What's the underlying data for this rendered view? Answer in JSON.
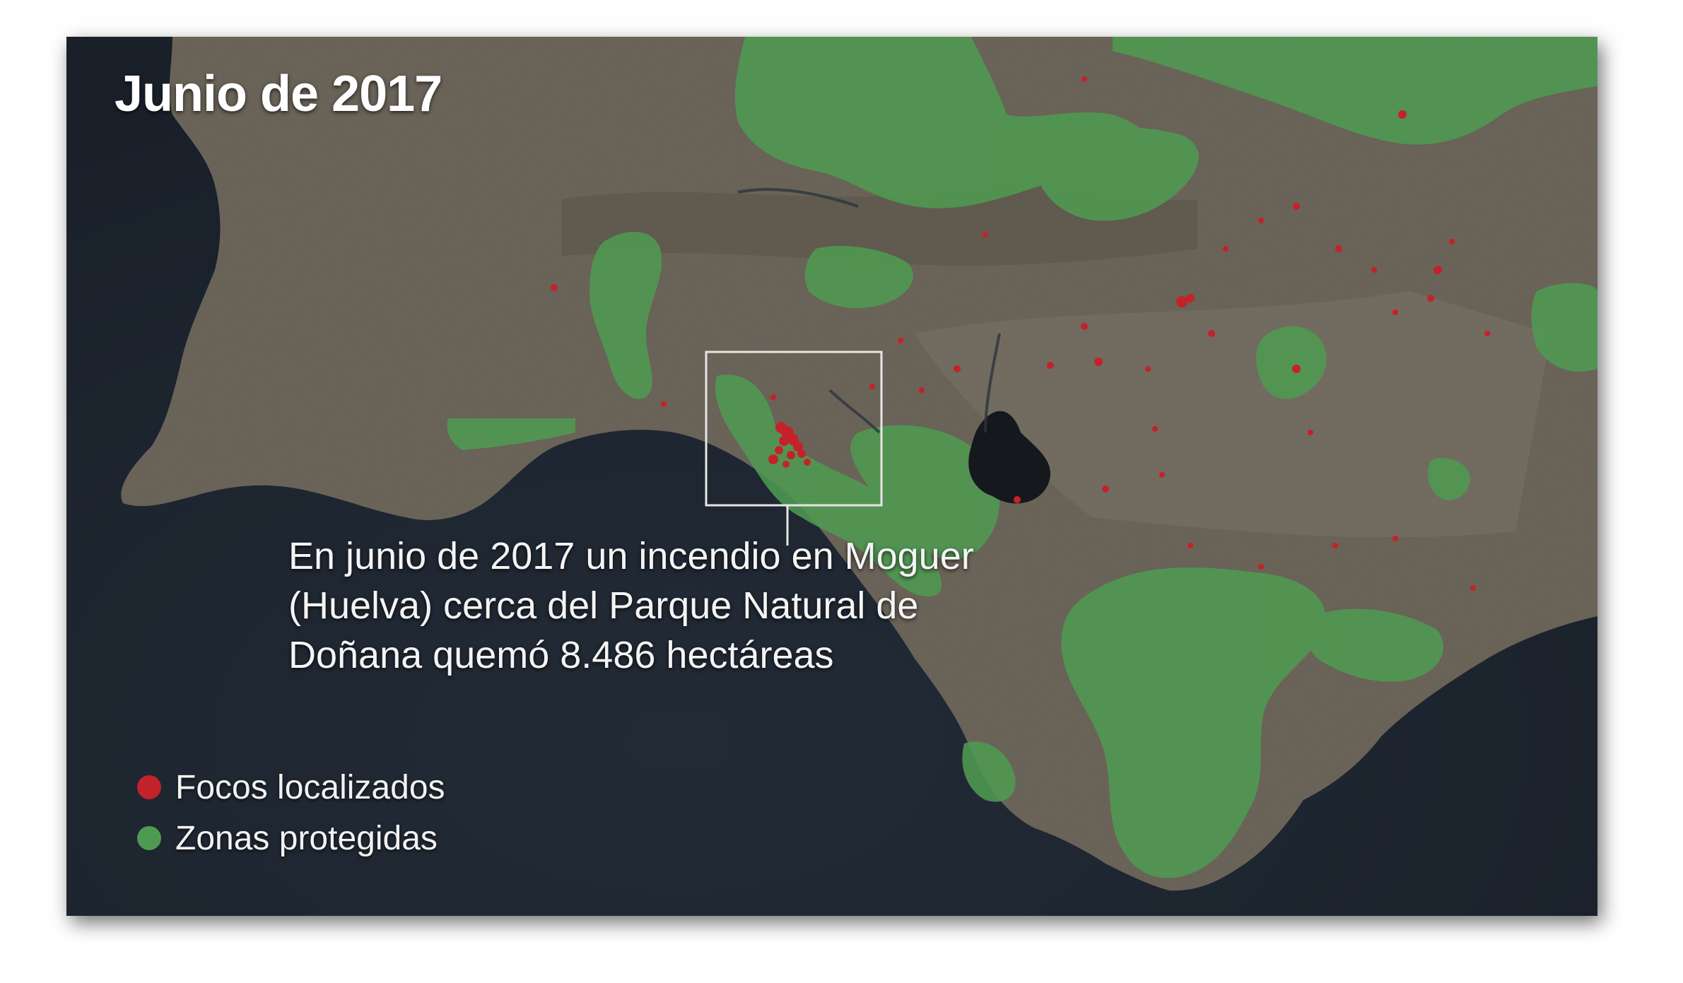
{
  "title": "Junio de 2017",
  "caption_lines": [
    "En junio de 2017 un incendio en Moguer",
    "(Huelva) cerca del Parque Natural de",
    "Doñana quemó 8.486 hectáreas"
  ],
  "legend": [
    {
      "label": "Focos localizados",
      "color": "#c4222a"
    },
    {
      "label": "Zonas protegidas",
      "color": "#4f9a52"
    }
  ],
  "colors": {
    "sea": "#1d2530",
    "land": "#6b6358",
    "protected": "#4f9a52",
    "fire": "#c4222a"
  }
}
